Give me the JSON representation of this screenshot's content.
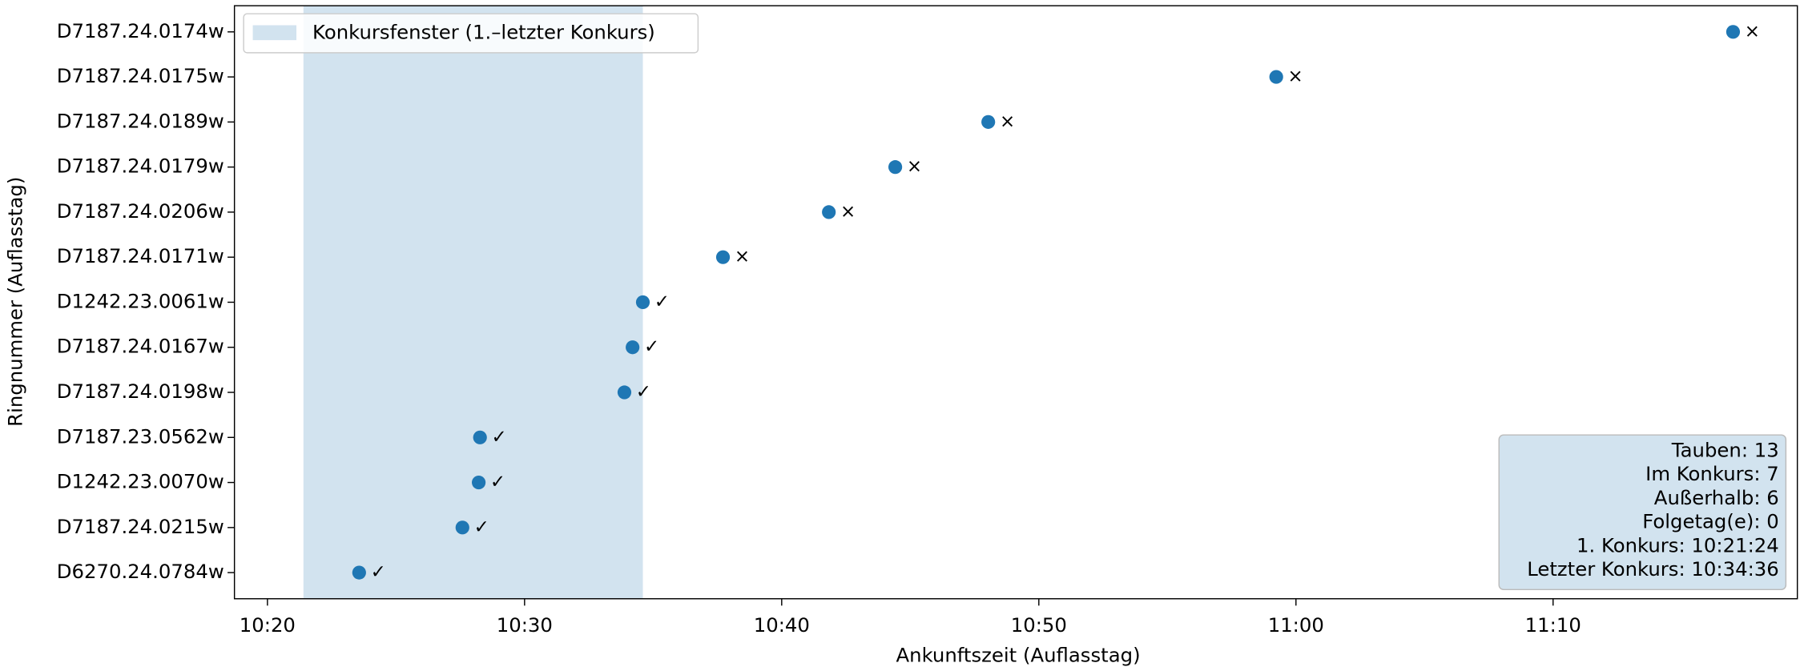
{
  "chart_data": {
    "type": "scatter",
    "xlabel": "Ankunftszeit (Auflasstag)",
    "ylabel": "Ringnummer (Auflasstag)",
    "categories": [
      "D7187.24.0174w",
      "D7187.24.0175w",
      "D7187.24.0189w",
      "D7187.24.0179w",
      "D7187.24.0206w",
      "D7187.24.0171w",
      "D1242.23.0061w",
      "D7187.24.0167w",
      "D7187.24.0198w",
      "D7187.23.0562w",
      "D1242.23.0070w",
      "D7187.24.0215w",
      "D6270.24.0784w"
    ],
    "x": [
      "11:17:00",
      "10:59:14",
      "10:48:02",
      "10:44:25",
      "10:41:50",
      "10:37:43",
      "10:34:36",
      "10:34:12",
      "10:33:53",
      "10:28:16",
      "10:28:13",
      "10:27:35",
      "10:23:34"
    ],
    "markers": [
      "×",
      "×",
      "×",
      "×",
      "×",
      "×",
      "✓",
      "✓",
      "✓",
      "✓",
      "✓",
      "✓",
      "✓"
    ],
    "color": "#1f77b4",
    "xlim": [
      "10:18:43",
      "11:19:30"
    ],
    "xticks": [
      {
        "value": "10:20:00",
        "label": "10:20"
      },
      {
        "value": "10:30:00",
        "label": "10:30"
      },
      {
        "value": "10:40:00",
        "label": "10:40"
      },
      {
        "value": "10:50:00",
        "label": "10:50"
      },
      {
        "value": "11:00:00",
        "label": "11:00"
      },
      {
        "value": "11:10:00",
        "label": "11:10"
      }
    ],
    "window": {
      "name": "Konkursfenster (1.–letzter Konkurs)",
      "color": "#d2e3ef",
      "span": [
        "10:21:24",
        "10:34:36"
      ]
    },
    "legend": "upper left",
    "stats": [
      "Tauben: 13",
      "Im Konkurs: 7",
      "Außerhalb: 6",
      "Folgetag(e): 0",
      "1. Konkurs: 10:21:24",
      "Letzter Konkurs: 10:34:36"
    ]
  }
}
